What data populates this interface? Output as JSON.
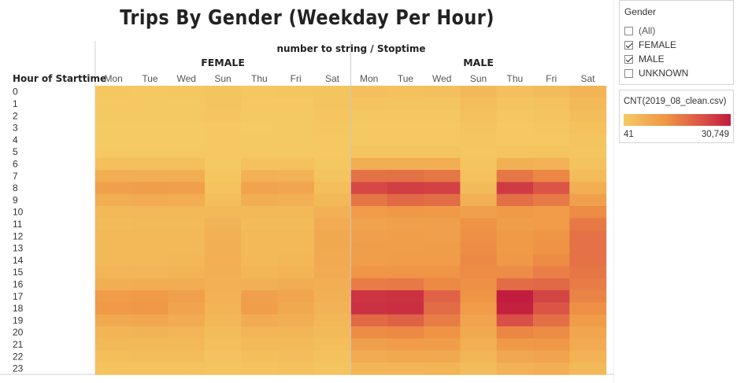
{
  "title": "Trips By Gender (Weekday Per Hour)",
  "column_axis_label": "number to string  /  Stoptime",
  "row_axis_label": "Hour of Starttime",
  "filter": {
    "title": "Gender",
    "items": [
      {
        "label": "(All)",
        "checked": false
      },
      {
        "label": "FEMALE",
        "checked": true
      },
      {
        "label": "MALE",
        "checked": true
      },
      {
        "label": "UNKNOWN",
        "checked": false
      }
    ]
  },
  "legend": {
    "title": "CNT(2019_08_clean.csv)",
    "min_label": "41",
    "max_label": "30,749",
    "min": 41,
    "max": 30749,
    "colors": [
      "#f5ca62",
      "#ef9445",
      "#db5447",
      "#c21c3e"
    ]
  },
  "chart_data": {
    "type": "heatmap",
    "title": "Trips By Gender (Weekday Per Hour)",
    "x_label": "number to string  /  Stoptime",
    "y_label": "Hour of Starttime",
    "groups": [
      "FEMALE",
      "MALE"
    ],
    "days": [
      "Mon",
      "Tue",
      "Wed",
      "Sun",
      "Thu",
      "Fri",
      "Sat"
    ],
    "hours": [
      "0",
      "1",
      "2",
      "3",
      "4",
      "5",
      "6",
      "7",
      "8",
      "9",
      "10",
      "11",
      "12",
      "13",
      "14",
      "15",
      "16",
      "17",
      "18",
      "19",
      "20",
      "21",
      "22",
      "23"
    ],
    "values": {
      "FEMALE": [
        [
          700,
          600,
          650,
          1400,
          700,
          900,
          1500
        ],
        [
          400,
          350,
          380,
          1100,
          400,
          500,
          1200
        ],
        [
          250,
          220,
          240,
          900,
          250,
          300,
          1000
        ],
        [
          150,
          130,
          140,
          600,
          150,
          200,
          800
        ],
        [
          150,
          140,
          150,
          400,
          160,
          200,
          500
        ],
        [
          400,
          380,
          400,
          300,
          400,
          380,
          400
        ],
        [
          2500,
          2300,
          2400,
          500,
          2200,
          2000,
          700
        ],
        [
          6500,
          6500,
          6300,
          1000,
          5800,
          5200,
          1500
        ],
        [
          9500,
          10000,
          9800,
          1800,
          9000,
          8500,
          2800
        ],
        [
          6500,
          7000,
          6800,
          2800,
          6500,
          6000,
          4000
        ],
        [
          4000,
          4200,
          4100,
          4200,
          4000,
          3800,
          5800
        ],
        [
          3500,
          3600,
          3700,
          5300,
          3500,
          3500,
          7000
        ],
        [
          3800,
          3900,
          4000,
          5800,
          3800,
          4000,
          7500
        ],
        [
          4000,
          4000,
          4200,
          6000,
          4000,
          4200,
          7500
        ],
        [
          4000,
          4100,
          4300,
          6200,
          4100,
          4300,
          7300
        ],
        [
          4800,
          4800,
          5000,
          6000,
          4600,
          5000,
          7000
        ],
        [
          6500,
          6800,
          6600,
          5800,
          6000,
          6800,
          6500
        ],
        [
          10500,
          11000,
          9500,
          5500,
          9500,
          8500,
          6000
        ],
        [
          11000,
          11500,
          8800,
          5000,
          10000,
          7500,
          5300
        ],
        [
          7500,
          8000,
          7000,
          4300,
          7000,
          6300,
          4300
        ],
        [
          5000,
          5300,
          4800,
          3300,
          4800,
          4500,
          3600
        ],
        [
          3800,
          4000,
          3800,
          2500,
          3600,
          3600,
          2800
        ],
        [
          2800,
          2900,
          2900,
          1800,
          2800,
          2900,
          2100
        ],
        [
          1800,
          1800,
          1900,
          1200,
          1900,
          2100,
          1500
        ]
      ],
      "MALE": [
        [
          2500,
          2200,
          2300,
          4000,
          2500,
          3200,
          5000
        ],
        [
          1300,
          1100,
          1200,
          3000,
          1300,
          1800,
          4000
        ],
        [
          800,
          700,
          800,
          2200,
          800,
          1100,
          3000
        ],
        [
          500,
          450,
          500,
          1500,
          500,
          700,
          2000
        ],
        [
          500,
          450,
          500,
          1000,
          500,
          600,
          1300
        ],
        [
          1500,
          1400,
          1500,
          700,
          1500,
          1400,
          1000
        ],
        [
          6500,
          6500,
          6300,
          1200,
          6000,
          5500,
          1800
        ],
        [
          17500,
          17800,
          17000,
          2200,
          17000,
          14500,
          3500
        ],
        [
          24000,
          25500,
          25000,
          3600,
          26000,
          22000,
          6500
        ],
        [
          17000,
          19000,
          18500,
          6000,
          18000,
          16500,
          9500
        ],
        [
          10500,
          11500,
          11000,
          9500,
          11000,
          10500,
          13500
        ],
        [
          9000,
          9500,
          9500,
          12500,
          10000,
          10500,
          16500
        ],
        [
          9500,
          10000,
          9500,
          13000,
          11000,
          12000,
          17500
        ],
        [
          10000,
          10000,
          10200,
          13500,
          11000,
          12500,
          17500
        ],
        [
          10000,
          10500,
          10500,
          14000,
          11500,
          13500,
          17500
        ],
        [
          12000,
          12000,
          12000,
          13500,
          13500,
          15500,
          17000
        ],
        [
          16000,
          16500,
          14000,
          13000,
          18500,
          19000,
          16000
        ],
        [
          27000,
          27500,
          20000,
          12000,
          30749,
          24500,
          15000
        ],
        [
          27500,
          28000,
          18500,
          10500,
          30000,
          22000,
          13000
        ],
        [
          19000,
          20000,
          16000,
          9000,
          23000,
          18000,
          10500
        ],
        [
          13500,
          14000,
          12500,
          7500,
          14500,
          13500,
          8500
        ],
        [
          9500,
          10500,
          10000,
          6000,
          11000,
          11500,
          7000
        ],
        [
          7000,
          7500,
          7500,
          4500,
          8000,
          9000,
          5500
        ],
        [
          4500,
          4800,
          5000,
          3200,
          5500,
          6500,
          4000
        ]
      ]
    },
    "value_range": [
      41,
      30749
    ]
  }
}
